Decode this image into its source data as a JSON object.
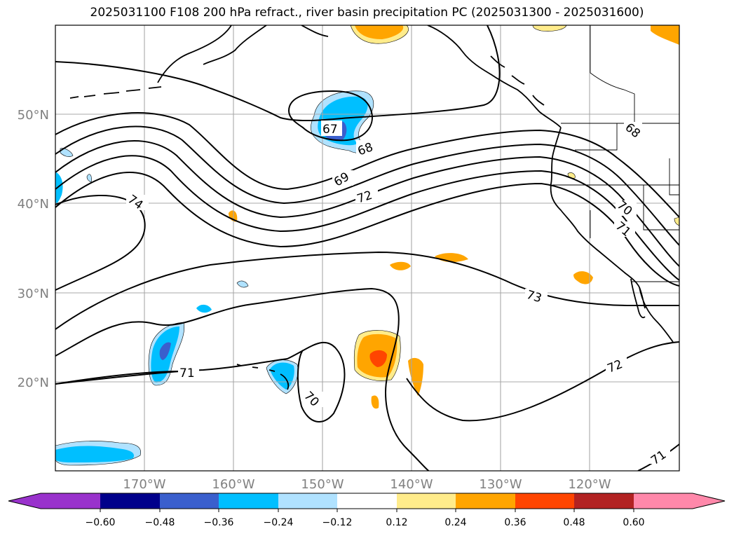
{
  "title": "2025031100 F108 200 hPa refract., river basin precipitation PC (2025031300 - 2025031600)",
  "axes": {
    "lat_labels": [
      "50°N",
      "40°N",
      "30°N",
      "20°N"
    ],
    "lon_labels": [
      "170°W",
      "160°W",
      "150°W",
      "140°W",
      "130°W",
      "120°W"
    ]
  },
  "contour_labels": [
    "67",
    "68",
    "69",
    "72",
    "74",
    "73",
    "71",
    "70",
    "72",
    "71",
    "68",
    "70",
    "71"
  ],
  "colorbar": {
    "ticks": [
      "−0.60",
      "−0.48",
      "−0.36",
      "−0.24",
      "−0.12",
      "0.12",
      "0.24",
      "0.36",
      "0.48",
      "0.60"
    ],
    "colors": [
      "#9932cc",
      "#00008b",
      "#3a5fcd",
      "#00bfff",
      "#b0e2ff",
      "#ffffff",
      "#ffec8b",
      "#ffa500",
      "#ff4500",
      "#b22222",
      "#ff88aa"
    ]
  },
  "shading_colors": {
    "neg_light": "#b0e2ff",
    "neg_mid": "#00bfff",
    "neg_strong": "#3a5fcd",
    "pos_light": "#ffec8b",
    "pos_mid": "#ffa500",
    "pos_strong": "#ff4500"
  }
}
